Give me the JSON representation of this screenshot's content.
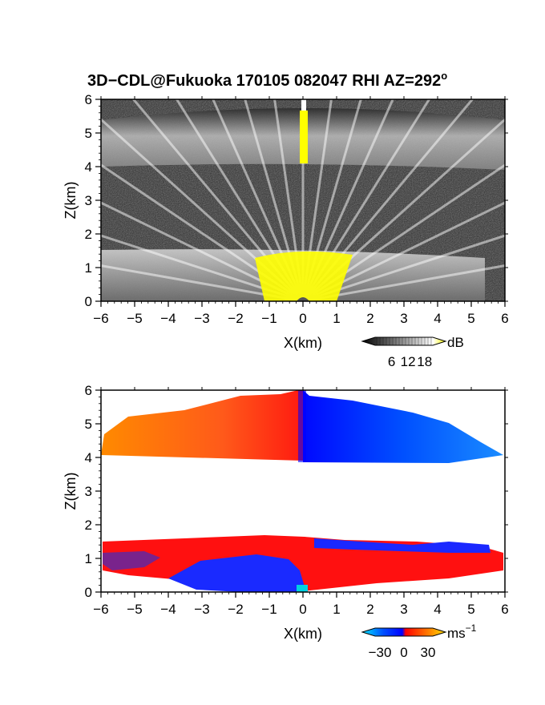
{
  "title_main": "3D−CDL@Fukuoka 170105 082047 RHI AZ=292",
  "title_sup": "o",
  "chart_data": [
    {
      "type": "heatmap",
      "quantity": "reflectivity",
      "xlabel": "X(km)",
      "ylabel": "Z(km)",
      "xlim": [
        -6,
        6
      ],
      "ylim": [
        0,
        6
      ],
      "xticks": [
        "−6",
        "−5",
        "−4",
        "−3",
        "−2",
        "−1",
        "0",
        "1",
        "2",
        "3",
        "4",
        "5",
        "6"
      ],
      "yticks": [
        "0",
        "1",
        "2",
        "3",
        "4",
        "5",
        "6"
      ],
      "colorbar": {
        "unit": "dB",
        "ticks": [
          "6",
          "12",
          "18"
        ],
        "range": [
          0,
          21
        ],
        "colors": [
          "#000000",
          "#ffffff",
          "#ffff00"
        ]
      },
      "layers": [
        {
          "name": "lower layer",
          "z_bottom": 0.0,
          "z_top": 1.5,
          "x_extent": [
            -6,
            5.5
          ]
        },
        {
          "name": "upper layer",
          "z_bottom": 4.0,
          "z_top": 6.0,
          "x_extent": [
            -6,
            6
          ]
        },
        {
          "name": "noise band",
          "z_bottom": 1.5,
          "z_top": 4.0,
          "x_extent": [
            -6,
            6
          ]
        }
      ],
      "saturated_regions": [
        {
          "x": [
            -1.2,
            1.3
          ],
          "z": [
            0.0,
            1.45
          ],
          "value": "18+"
        },
        {
          "x": [
            -0.05,
            0.2
          ],
          "z": [
            4.1,
            6.0
          ],
          "value": "18+"
        }
      ],
      "colors": {
        "background_noise": "#2a2a2a",
        "saturated": "#ffff00"
      }
    },
    {
      "type": "heatmap",
      "quantity": "doppler velocity",
      "xlabel": "X(km)",
      "ylabel": "Z(km)",
      "xlim": [
        -6,
        6
      ],
      "ylim": [
        0,
        6
      ],
      "xticks": [
        "−6",
        "−5",
        "−4",
        "−3",
        "−2",
        "−1",
        "0",
        "1",
        "2",
        "3",
        "4",
        "5",
        "6"
      ],
      "yticks": [
        "0",
        "1",
        "2",
        "3",
        "4",
        "5",
        "6"
      ],
      "colorbar": {
        "unit": "ms",
        "unit_sup": "−1",
        "ticks": [
          "−30",
          "0",
          "30"
        ],
        "range": [
          -40,
          40
        ],
        "colors": [
          "#00e5ff",
          "#0050ff",
          "#0000ff",
          "#ff0000",
          "#ff8000",
          "#ffe000"
        ]
      },
      "regions": [
        {
          "layer": "upper",
          "x": [
            -5.8,
            0.0
          ],
          "z": [
            4.0,
            5.9
          ],
          "velocity": "positive (red to orange, increasing toward −X)"
        },
        {
          "layer": "upper",
          "x": [
            0.0,
            6.0
          ],
          "z": [
            4.0,
            5.9
          ],
          "velocity": "negative (blue to light blue, increasing toward +X)"
        },
        {
          "layer": "lower",
          "x": [
            -6.0,
            6.0
          ],
          "z": [
            0.0,
            1.6
          ],
          "velocity": "mostly positive (red)"
        },
        {
          "layer": "lower",
          "x": [
            -3.0,
            0.0
          ],
          "z": [
            0.0,
            1.1
          ],
          "velocity": "negative (blue)"
        },
        {
          "layer": "lower",
          "x": [
            0.3,
            5.5
          ],
          "z": [
            1.1,
            1.45
          ],
          "velocity": "negative (blue)"
        }
      ]
    }
  ]
}
